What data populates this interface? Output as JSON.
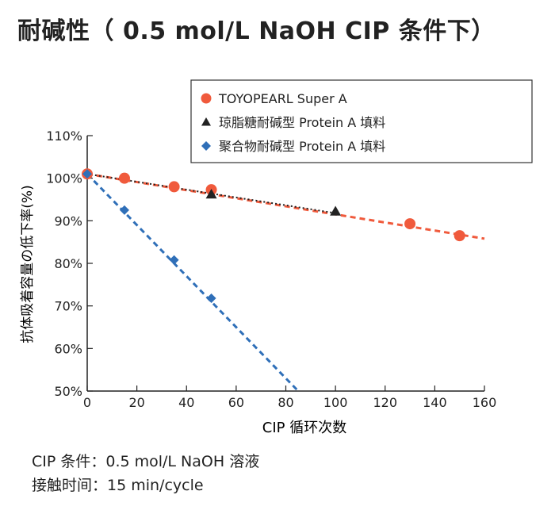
{
  "page": {
    "title": "耐碱性（ 0.5 mol/L NaOH CIP 条件下）",
    "conditions": [
      "CIP 条件：0.5 mol/L NaOH 溶液",
      "接触时间：15 min/cycle"
    ]
  },
  "chart_data": {
    "type": "scatter",
    "xlabel": "CIP 循环次数",
    "ylabel": "抗体吸着容量の低下率(%)",
    "xlim": [
      0,
      160
    ],
    "ylim": [
      50,
      110
    ],
    "x_ticks": [
      0,
      20,
      40,
      60,
      80,
      100,
      120,
      140,
      160
    ],
    "y_ticks": [
      50,
      60,
      70,
      80,
      90,
      100,
      110
    ],
    "y_tick_labels": [
      "50%",
      "60%",
      "70%",
      "80%",
      "90%",
      "100%",
      "110%"
    ],
    "grid": false,
    "legend_position": "top-right",
    "series": [
      {
        "name": "TOYOPEARL Super A",
        "marker": "circle",
        "color": "#f05a3c",
        "points": [
          [
            0,
            101
          ],
          [
            15,
            100
          ],
          [
            35,
            98
          ],
          [
            50,
            97.3
          ],
          [
            130,
            89.3
          ],
          [
            150,
            86.5
          ]
        ],
        "trendline": {
          "style": "dashed",
          "from": [
            0,
            101
          ],
          "to": [
            160,
            85.8
          ]
        }
      },
      {
        "name": "琼脂糖耐碱型 Protein A 填料",
        "marker": "triangle",
        "color": "#222222",
        "points": [
          [
            50,
            96.2
          ],
          [
            100,
            92.2
          ]
        ],
        "trendline": {
          "style": "dotted",
          "from": [
            0,
            101
          ],
          "to": [
            100,
            91.8
          ]
        }
      },
      {
        "name": "聚合物耐碱型 Protein A 填料",
        "marker": "diamond",
        "color": "#2f6fb8",
        "points": [
          [
            0,
            101
          ],
          [
            15,
            92.5
          ],
          [
            35,
            80.8
          ],
          [
            50,
            71.8
          ]
        ],
        "trendline": {
          "style": "dashed",
          "from": [
            0,
            101
          ],
          "to": [
            85,
            50
          ]
        }
      }
    ]
  }
}
